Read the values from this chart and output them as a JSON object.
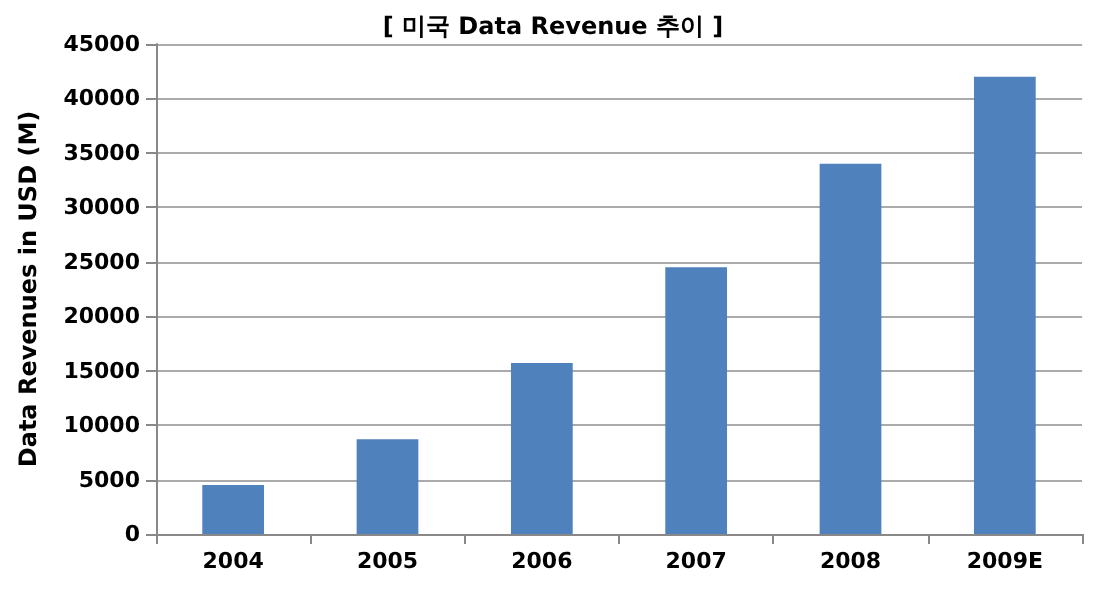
{
  "chart_data": {
    "type": "bar",
    "title": "[ 미국 Data Revenue 추이 ]",
    "ylabel": "Data Revenues in USD (M)",
    "categories": [
      "2004",
      "2005",
      "2006",
      "2007",
      "2008",
      "2009E"
    ],
    "values": [
      4500,
      8700,
      15700,
      24500,
      34000,
      42000
    ],
    "color": "#4f81bd",
    "ylim": [
      0,
      45000
    ],
    "yticks": [
      0,
      5000,
      10000,
      15000,
      20000,
      25000,
      30000,
      35000,
      40000,
      45000
    ],
    "grid": "y"
  }
}
